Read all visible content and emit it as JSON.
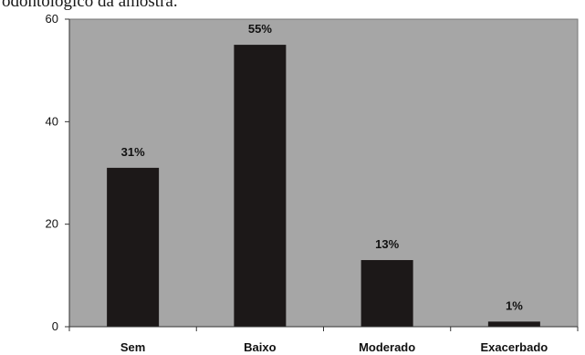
{
  "caption": "odontológico da amostra.",
  "chart_data": {
    "type": "bar",
    "categories": [
      "Sem",
      "Baixo",
      "Moderado",
      "Exacerbado"
    ],
    "values": [
      31,
      55,
      13,
      1
    ],
    "data_labels": [
      "31%",
      "55%",
      "13%",
      "1%"
    ],
    "title": "",
    "xlabel": "",
    "ylabel": "",
    "ylim": [
      0,
      60
    ],
    "yticks": [
      0,
      20,
      40,
      60
    ],
    "grid": false,
    "legend": "none",
    "colors": {
      "plot_background": "#a6a6a6",
      "bar": "#1c1818",
      "page_background": "#ffffff"
    }
  }
}
